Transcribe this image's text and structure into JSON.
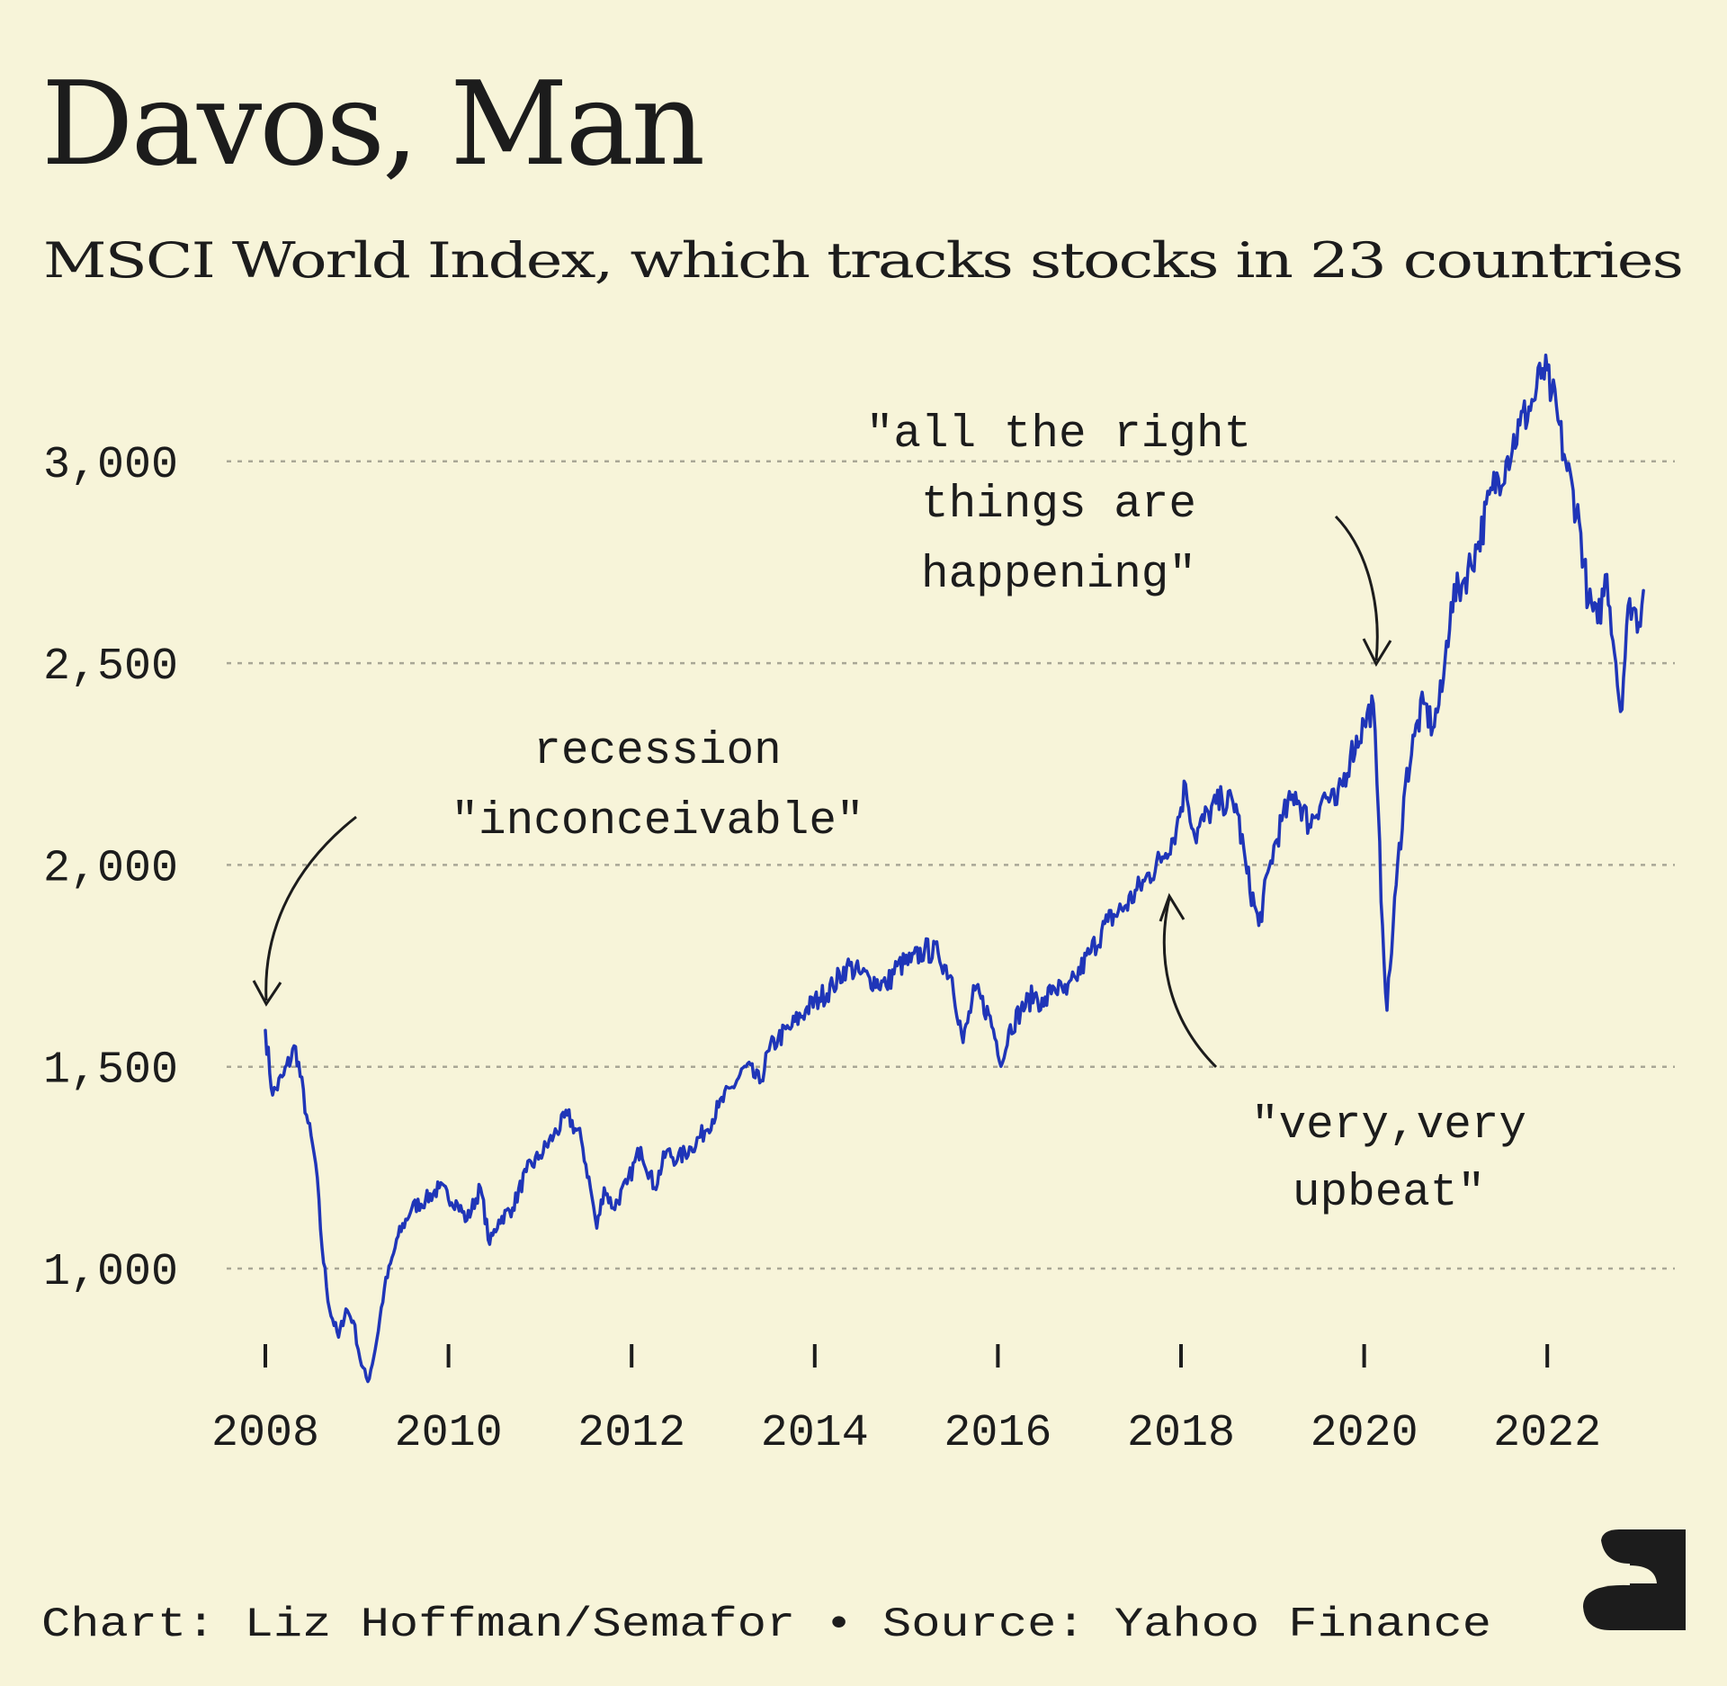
{
  "header": {
    "title": "Davos, Man",
    "subtitle": "MSCI World Index, which tracks stocks in 23 countries"
  },
  "footer": {
    "credit": "Chart: Liz Hoffman/Semafor • Source: Yahoo Finance"
  },
  "colors": {
    "background": "#f7f4d9",
    "line": "#1f35b8",
    "text": "#1c1c1c",
    "grid": "#a9a796"
  },
  "chart_data": {
    "type": "line",
    "title": "Davos, Man",
    "subtitle": "MSCI World Index, which tracks stocks in 23 countries",
    "xlabel": "",
    "ylabel": "",
    "xlim": [
      2008,
      2023
    ],
    "ylim": [
      700,
      3300
    ],
    "grid": true,
    "y_ticks": [
      1000,
      1500,
      2000,
      2500,
      3000
    ],
    "y_tick_labels": [
      "1,000",
      "1,500",
      "2,000",
      "2,500",
      "3,000"
    ],
    "x_ticks": [
      2008,
      2010,
      2012,
      2014,
      2016,
      2018,
      2020,
      2022
    ],
    "x_tick_labels": [
      "2008",
      "2010",
      "2012",
      "2014",
      "2016",
      "2018",
      "2020",
      "2022"
    ],
    "series": [
      {
        "x": [
          2008.0,
          2008.08,
          2008.2,
          2008.33,
          2008.45,
          2008.55,
          2008.62,
          2008.7,
          2008.8,
          2008.88,
          2008.96,
          2009.05,
          2009.12,
          2009.2,
          2009.3,
          2009.45,
          2009.6,
          2009.75,
          2009.9,
          2010.1,
          2010.2,
          2010.35,
          2010.45,
          2010.55,
          2010.7,
          2010.85,
          2011.0,
          2011.15,
          2011.3,
          2011.45,
          2011.55,
          2011.62,
          2011.7,
          2011.8,
          2011.95,
          2012.1,
          2012.25,
          2012.38,
          2012.5,
          2012.65,
          2012.8,
          2012.95,
          2013.1,
          2013.25,
          2013.4,
          2013.5,
          2013.6,
          2013.75,
          2013.9,
          2014.05,
          2014.2,
          2014.35,
          2014.5,
          2014.6,
          2014.78,
          2014.9,
          2015.05,
          2015.2,
          2015.35,
          2015.5,
          2015.62,
          2015.75,
          2015.9,
          2016.05,
          2016.12,
          2016.25,
          2016.4,
          2016.5,
          2016.6,
          2016.75,
          2016.85,
          2017.0,
          2017.2,
          2017.4,
          2017.6,
          2017.8,
          2017.95,
          2018.05,
          2018.15,
          2018.3,
          2018.45,
          2018.6,
          2018.72,
          2018.85,
          2018.98,
          2019.1,
          2019.25,
          2019.4,
          2019.55,
          2019.7,
          2019.85,
          2020.0,
          2020.1,
          2020.14,
          2020.2,
          2020.25,
          2020.35,
          2020.45,
          2020.55,
          2020.65,
          2020.75,
          2020.85,
          2020.95,
          2021.1,
          2021.25,
          2021.4,
          2021.55,
          2021.7,
          2021.85,
          2021.95,
          2022.05,
          2022.2,
          2022.35,
          2022.45,
          2022.55,
          2022.65,
          2022.75,
          2022.8,
          2022.9,
          2023.0,
          2023.05
        ],
        "y": [
          1590,
          1430,
          1480,
          1550,
          1380,
          1260,
          1050,
          900,
          830,
          900,
          870,
          760,
          720,
          800,
          950,
          1080,
          1150,
          1170,
          1200,
          1160,
          1120,
          1200,
          1060,
          1120,
          1150,
          1240,
          1280,
          1330,
          1380,
          1320,
          1200,
          1100,
          1200,
          1150,
          1210,
          1300,
          1200,
          1290,
          1270,
          1300,
          1340,
          1400,
          1450,
          1500,
          1460,
          1540,
          1570,
          1600,
          1640,
          1670,
          1700,
          1750,
          1730,
          1720,
          1700,
          1750,
          1760,
          1790,
          1780,
          1720,
          1560,
          1690,
          1630,
          1510,
          1590,
          1640,
          1680,
          1650,
          1700,
          1680,
          1720,
          1780,
          1860,
          1900,
          1960,
          2020,
          2090,
          2200,
          2070,
          2130,
          2160,
          2150,
          1980,
          1850,
          2010,
          2110,
          2180,
          2100,
          2170,
          2150,
          2270,
          2350,
          2400,
          2200,
          1850,
          1640,
          1950,
          2200,
          2320,
          2400,
          2340,
          2430,
          2650,
          2710,
          2800,
          2930,
          3000,
          3090,
          3150,
          3230,
          3170,
          3000,
          2850,
          2650,
          2600,
          2720,
          2500,
          2380,
          2660,
          2600,
          2680
        ]
      }
    ],
    "annotations": [
      {
        "lines": [
          "recession",
          "\"inconceivable\""
        ],
        "x": 2008.0
      },
      {
        "lines": [
          "\"all the right",
          "things are",
          "happening\""
        ],
        "x": 2020.1
      },
      {
        "lines": [
          "\"very,very",
          "upbeat\""
        ],
        "x": 2017.95
      }
    ]
  }
}
